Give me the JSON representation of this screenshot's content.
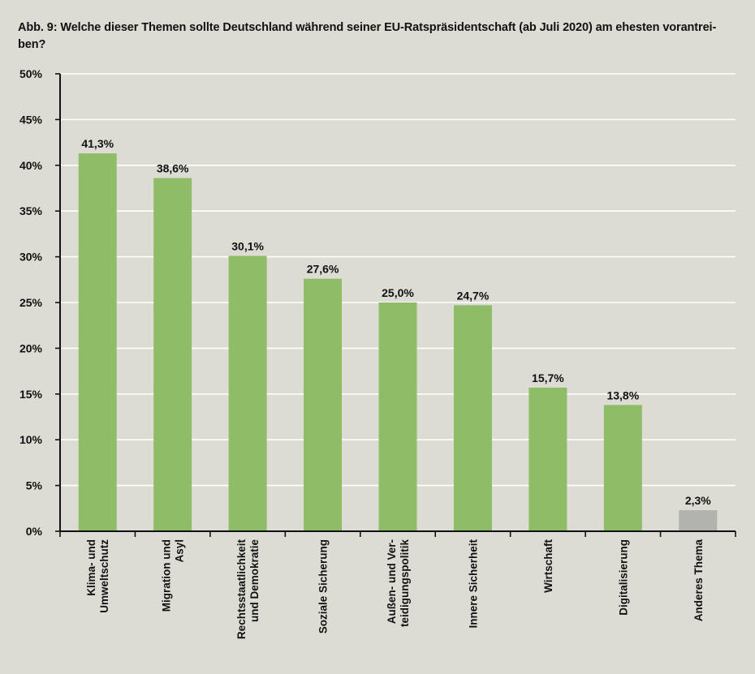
{
  "title": "Abb. 9: Welche dieser Themen sollte Deutschland während seiner EU-Ratspräsidentschaft (ab Juli 2020) am ehesten vorantrei-\nben?",
  "colors": {
    "background": "#dcdcd4",
    "bar_primary": "#8fbc67",
    "bar_other": "#b3b3ae",
    "grid": "#ffffff",
    "axis": "#111111"
  },
  "chart_data": {
    "type": "bar",
    "categories": [
      [
        "Klima- und",
        "Umweltschutz"
      ],
      [
        "Migration und",
        "Asyl"
      ],
      [
        "Rechtsstaatlichkeit",
        "und Demokratie"
      ],
      [
        "Soziale Sicherung"
      ],
      [
        "Außen- und Ver-",
        "teidigungspolitik"
      ],
      [
        "Innere Sicherheit"
      ],
      [
        "Wirtschaft"
      ],
      [
        "Digitalisierung"
      ],
      [
        "Anderes Thema"
      ]
    ],
    "values": [
      41.3,
      38.6,
      30.1,
      27.6,
      25.0,
      24.7,
      15.7,
      13.8,
      2.3
    ],
    "value_labels": [
      "41,3%",
      "38,6%",
      "30,1%",
      "27,6%",
      "25,0%",
      "24,7%",
      "15,7%",
      "13,8%",
      "2,3%"
    ],
    "bar_colors": [
      "#8fbc67",
      "#8fbc67",
      "#8fbc67",
      "#8fbc67",
      "#8fbc67",
      "#8fbc67",
      "#8fbc67",
      "#8fbc67",
      "#b3b3ae"
    ],
    "yticks": [
      0,
      5,
      10,
      15,
      20,
      25,
      30,
      35,
      40,
      45,
      50
    ],
    "ytick_labels": [
      "0%",
      "5%",
      "10%",
      "15%",
      "20%",
      "25%",
      "30%",
      "35%",
      "40%",
      "45%",
      "50%"
    ],
    "ylim": [
      0,
      50
    ],
    "grid": true,
    "legend": "none",
    "xlabel": "",
    "ylabel": ""
  }
}
